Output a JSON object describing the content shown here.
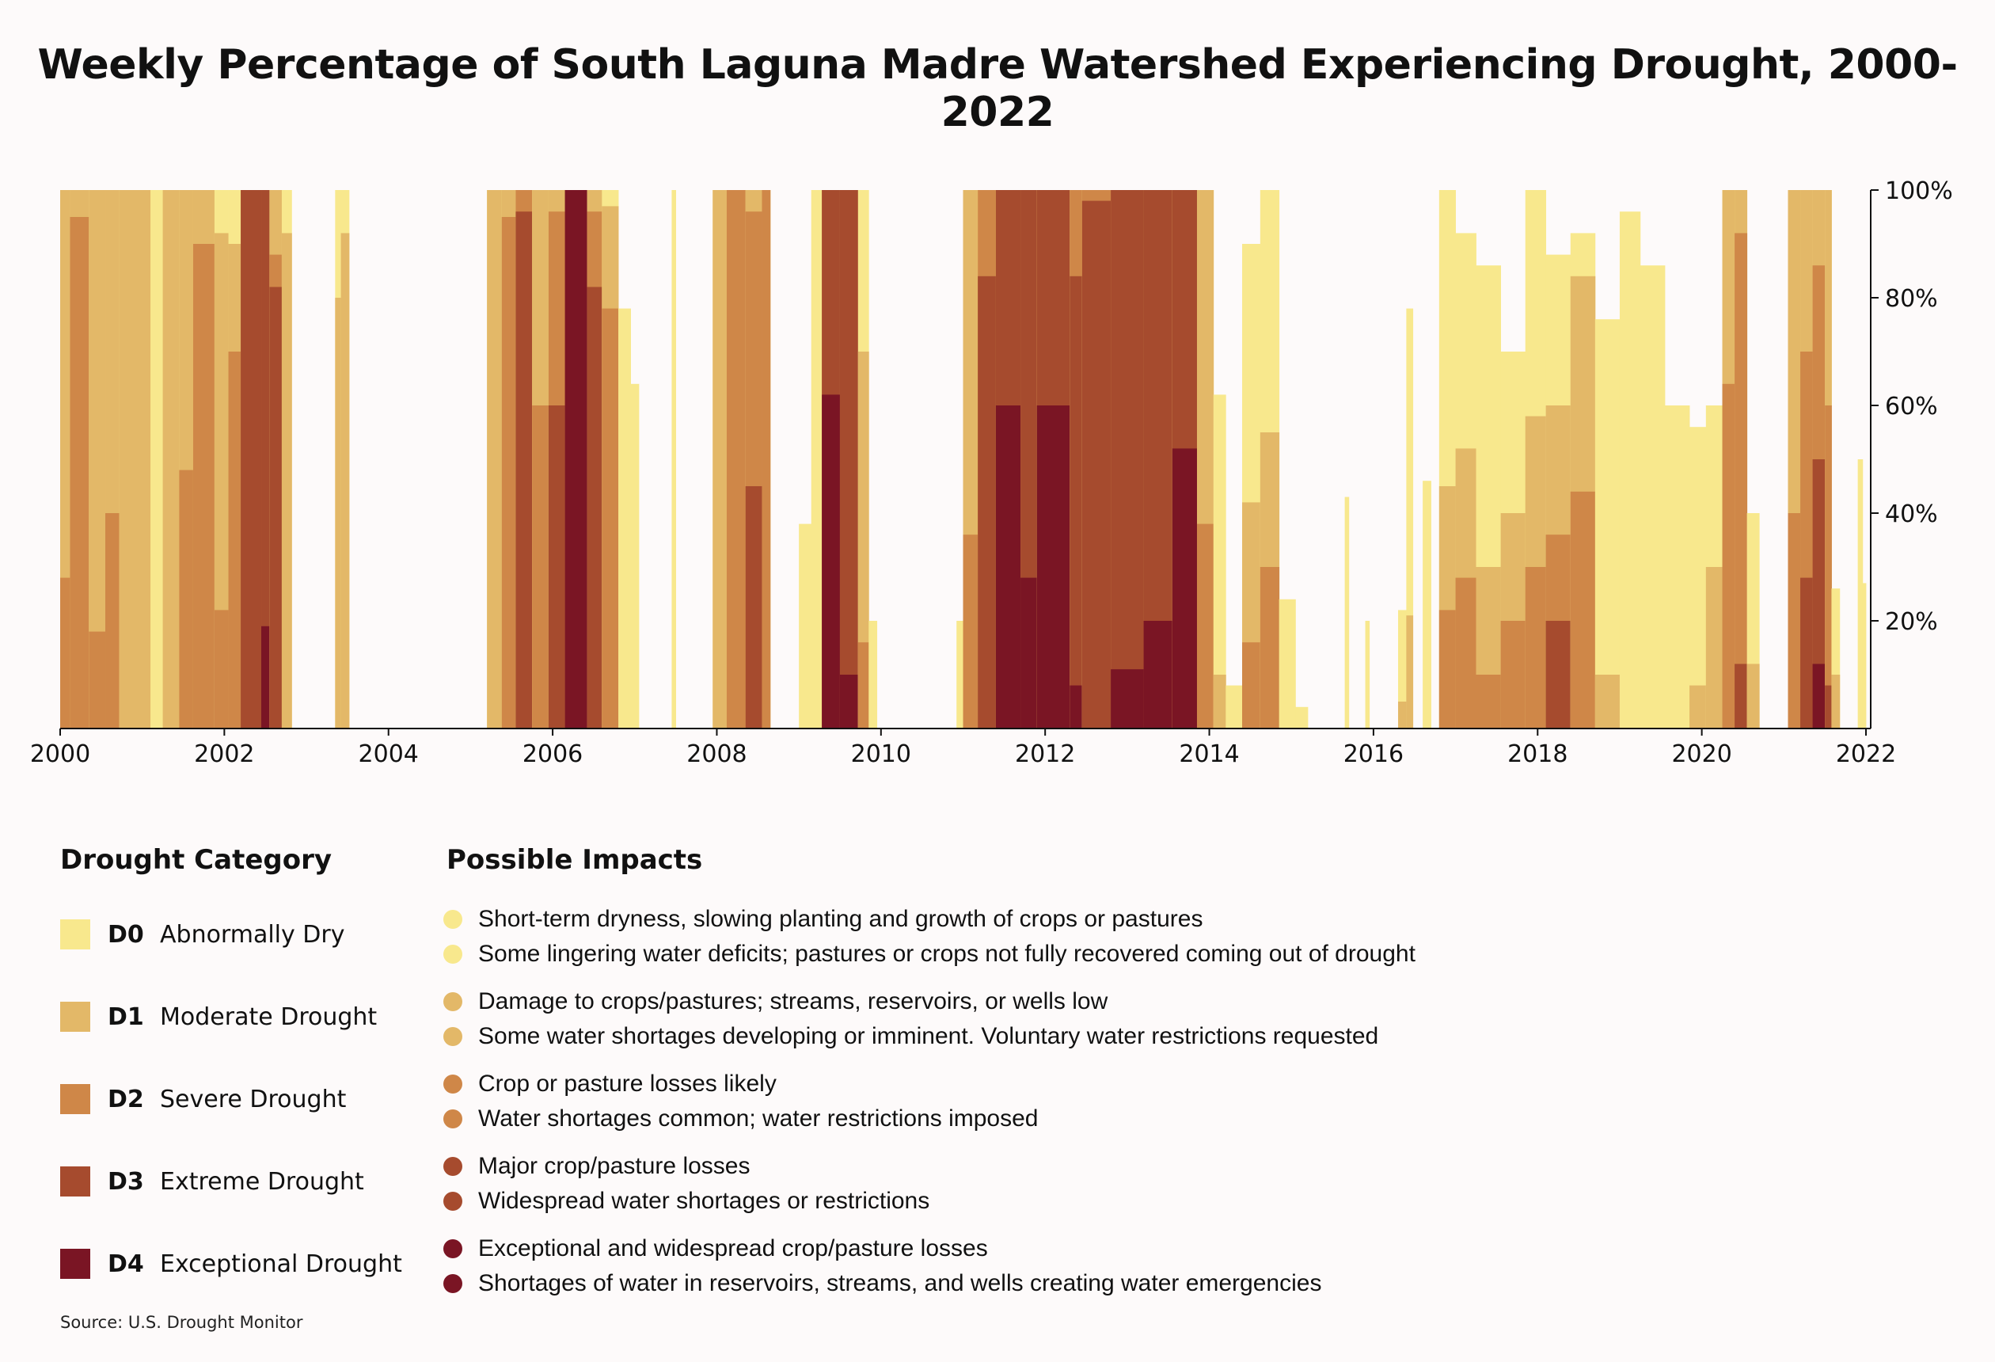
{
  "colors": {
    "background": "#fdfafa",
    "D0": "#f8e88d",
    "D1": "#e3b868",
    "D2": "#cf8748",
    "D3": "#a64b2e",
    "D4": "#7a1524",
    "axis": "#111111"
  },
  "chart_data": {
    "type": "area",
    "title": "Weekly Percentage of South Laguna Madre Watershed Experiencing Drought, 2000-2022",
    "xlim": [
      2000,
      2022
    ],
    "ylim": [
      0,
      100
    ],
    "y_axis_side": "right",
    "x_ticks": [
      {
        "value": 2000,
        "label": "2000"
      },
      {
        "value": 2002,
        "label": "2002"
      },
      {
        "value": 2004,
        "label": "2004"
      },
      {
        "value": 2006,
        "label": "2006"
      },
      {
        "value": 2008,
        "label": "2008"
      },
      {
        "value": 2010,
        "label": "2010"
      },
      {
        "value": 2012,
        "label": "2012"
      },
      {
        "value": 2014,
        "label": "2014"
      },
      {
        "value": 2016,
        "label": "2016"
      },
      {
        "value": 2018,
        "label": "2018"
      },
      {
        "value": 2020,
        "label": "2020"
      },
      {
        "value": 2022,
        "label": "2022"
      }
    ],
    "y_ticks": [
      {
        "value": 20,
        "label": "20%"
      },
      {
        "value": 40,
        "label": "40%"
      },
      {
        "value": 60,
        "label": "60%"
      },
      {
        "value": 80,
        "label": "80%"
      },
      {
        "value": 100,
        "label": "100%"
      }
    ],
    "series_order": [
      "D0",
      "D1",
      "D2",
      "D3",
      "D4"
    ],
    "segments": [
      {
        "start": 2000.0,
        "end": 2000.12,
        "D0": 100,
        "D1": 100,
        "D2": 28,
        "D3": 0,
        "D4": 0
      },
      {
        "start": 2000.12,
        "end": 2000.35,
        "D0": 100,
        "D1": 100,
        "D2": 95,
        "D3": 0,
        "D4": 0
      },
      {
        "start": 2000.35,
        "end": 2000.55,
        "D0": 100,
        "D1": 100,
        "D2": 18,
        "D3": 0,
        "D4": 0
      },
      {
        "start": 2000.55,
        "end": 2000.72,
        "D0": 100,
        "D1": 100,
        "D2": 40,
        "D3": 0,
        "D4": 0
      },
      {
        "start": 2000.72,
        "end": 2001.1,
        "D0": 100,
        "D1": 100,
        "D2": 0,
        "D3": 0,
        "D4": 0
      },
      {
        "start": 2001.1,
        "end": 2001.25,
        "D0": 100,
        "D1": 0,
        "D2": 0,
        "D3": 0,
        "D4": 0
      },
      {
        "start": 2001.25,
        "end": 2001.45,
        "D0": 100,
        "D1": 100,
        "D2": 0,
        "D3": 0,
        "D4": 0
      },
      {
        "start": 2001.45,
        "end": 2001.62,
        "D0": 100,
        "D1": 100,
        "D2": 48,
        "D3": 0,
        "D4": 0
      },
      {
        "start": 2001.62,
        "end": 2001.88,
        "D0": 100,
        "D1": 100,
        "D2": 90,
        "D3": 0,
        "D4": 0
      },
      {
        "start": 2001.88,
        "end": 2002.05,
        "D0": 100,
        "D1": 92,
        "D2": 22,
        "D3": 0,
        "D4": 0
      },
      {
        "start": 2002.05,
        "end": 2002.2,
        "D0": 100,
        "D1": 90,
        "D2": 70,
        "D3": 0,
        "D4": 0
      },
      {
        "start": 2002.2,
        "end": 2002.45,
        "D0": 100,
        "D1": 100,
        "D2": 100,
        "D3": 100,
        "D4": 0
      },
      {
        "start": 2002.45,
        "end": 2002.55,
        "D0": 100,
        "D1": 100,
        "D2": 100,
        "D3": 100,
        "D4": 19
      },
      {
        "start": 2002.55,
        "end": 2002.7,
        "D0": 100,
        "D1": 100,
        "D2": 88,
        "D3": 82,
        "D4": 0
      },
      {
        "start": 2002.7,
        "end": 2002.82,
        "D0": 100,
        "D1": 92,
        "D2": 0,
        "D3": 0,
        "D4": 0
      },
      {
        "start": 2003.35,
        "end": 2003.42,
        "D0": 100,
        "D1": 80,
        "D2": 0,
        "D3": 0,
        "D4": 0
      },
      {
        "start": 2003.42,
        "end": 2003.52,
        "D0": 100,
        "D1": 92,
        "D2": 0,
        "D3": 0,
        "D4": 0
      },
      {
        "start": 2005.2,
        "end": 2005.38,
        "D0": 100,
        "D1": 100,
        "D2": 0,
        "D3": 0,
        "D4": 0
      },
      {
        "start": 2005.38,
        "end": 2005.55,
        "D0": 100,
        "D1": 100,
        "D2": 95,
        "D3": 0,
        "D4": 0
      },
      {
        "start": 2005.55,
        "end": 2005.75,
        "D0": 100,
        "D1": 100,
        "D2": 100,
        "D3": 96,
        "D4": 0
      },
      {
        "start": 2005.75,
        "end": 2005.95,
        "D0": 100,
        "D1": 100,
        "D2": 60,
        "D3": 0,
        "D4": 0
      },
      {
        "start": 2005.95,
        "end": 2006.15,
        "D0": 100,
        "D1": 100,
        "D2": 96,
        "D3": 60,
        "D4": 0
      },
      {
        "start": 2006.15,
        "end": 2006.42,
        "D0": 100,
        "D1": 100,
        "D2": 100,
        "D3": 100,
        "D4": 100
      },
      {
        "start": 2006.42,
        "end": 2006.6,
        "D0": 100,
        "D1": 100,
        "D2": 96,
        "D3": 82,
        "D4": 0
      },
      {
        "start": 2006.6,
        "end": 2006.8,
        "D0": 100,
        "D1": 97,
        "D2": 78,
        "D3": 0,
        "D4": 0
      },
      {
        "start": 2006.8,
        "end": 2006.95,
        "D0": 78,
        "D1": 0,
        "D2": 0,
        "D3": 0,
        "D4": 0
      },
      {
        "start": 2006.95,
        "end": 2007.05,
        "D0": 64,
        "D1": 0,
        "D2": 0,
        "D3": 0,
        "D4": 0
      },
      {
        "start": 2007.45,
        "end": 2007.5,
        "D0": 100,
        "D1": 0,
        "D2": 0,
        "D3": 0,
        "D4": 0
      },
      {
        "start": 2007.95,
        "end": 2008.12,
        "D0": 100,
        "D1": 100,
        "D2": 0,
        "D3": 0,
        "D4": 0
      },
      {
        "start": 2008.12,
        "end": 2008.35,
        "D0": 100,
        "D1": 100,
        "D2": 100,
        "D3": 0,
        "D4": 0
      },
      {
        "start": 2008.35,
        "end": 2008.55,
        "D0": 100,
        "D1": 100,
        "D2": 96,
        "D3": 45,
        "D4": 0
      },
      {
        "start": 2008.55,
        "end": 2008.65,
        "D0": 100,
        "D1": 100,
        "D2": 100,
        "D3": 0,
        "D4": 0
      },
      {
        "start": 2009.0,
        "end": 2009.15,
        "D0": 38,
        "D1": 0,
        "D2": 0,
        "D3": 0,
        "D4": 0
      },
      {
        "start": 2009.15,
        "end": 2009.28,
        "D0": 100,
        "D1": 0,
        "D2": 0,
        "D3": 0,
        "D4": 0
      },
      {
        "start": 2009.28,
        "end": 2009.5,
        "D0": 100,
        "D1": 100,
        "D2": 100,
        "D3": 100,
        "D4": 62
      },
      {
        "start": 2009.5,
        "end": 2009.72,
        "D0": 100,
        "D1": 100,
        "D2": 100,
        "D3": 100,
        "D4": 10
      },
      {
        "start": 2009.72,
        "end": 2009.85,
        "D0": 100,
        "D1": 70,
        "D2": 16,
        "D3": 0,
        "D4": 0
      },
      {
        "start": 2009.85,
        "end": 2009.95,
        "D0": 20,
        "D1": 0,
        "D2": 0,
        "D3": 0,
        "D4": 0
      },
      {
        "start": 2010.92,
        "end": 2011.0,
        "D0": 20,
        "D1": 0,
        "D2": 0,
        "D3": 0,
        "D4": 0
      },
      {
        "start": 2011.0,
        "end": 2011.18,
        "D0": 100,
        "D1": 100,
        "D2": 36,
        "D3": 0,
        "D4": 0
      },
      {
        "start": 2011.18,
        "end": 2011.4,
        "D0": 100,
        "D1": 100,
        "D2": 100,
        "D3": 84,
        "D4": 0
      },
      {
        "start": 2011.4,
        "end": 2011.7,
        "D0": 100,
        "D1": 100,
        "D2": 100,
        "D3": 100,
        "D4": 60
      },
      {
        "start": 2011.7,
        "end": 2011.9,
        "D0": 100,
        "D1": 100,
        "D2": 100,
        "D3": 100,
        "D4": 28
      },
      {
        "start": 2011.9,
        "end": 2012.3,
        "D0": 100,
        "D1": 100,
        "D2": 100,
        "D3": 100,
        "D4": 60
      },
      {
        "start": 2012.3,
        "end": 2012.45,
        "D0": 100,
        "D1": 100,
        "D2": 100,
        "D3": 84,
        "D4": 8
      },
      {
        "start": 2012.45,
        "end": 2012.8,
        "D0": 100,
        "D1": 100,
        "D2": 100,
        "D3": 98,
        "D4": 0
      },
      {
        "start": 2012.8,
        "end": 2013.2,
        "D0": 100,
        "D1": 100,
        "D2": 100,
        "D3": 100,
        "D4": 11
      },
      {
        "start": 2013.2,
        "end": 2013.55,
        "D0": 100,
        "D1": 100,
        "D2": 100,
        "D3": 100,
        "D4": 20
      },
      {
        "start": 2013.55,
        "end": 2013.85,
        "D0": 100,
        "D1": 100,
        "D2": 100,
        "D3": 100,
        "D4": 52
      },
      {
        "start": 2013.85,
        "end": 2014.05,
        "D0": 100,
        "D1": 100,
        "D2": 38,
        "D3": 0,
        "D4": 0
      },
      {
        "start": 2014.05,
        "end": 2014.2,
        "D0": 62,
        "D1": 10,
        "D2": 0,
        "D3": 0,
        "D4": 0
      },
      {
        "start": 2014.2,
        "end": 2014.4,
        "D0": 8,
        "D1": 0,
        "D2": 0,
        "D3": 0,
        "D4": 0
      },
      {
        "start": 2014.4,
        "end": 2014.62,
        "D0": 90,
        "D1": 42,
        "D2": 16,
        "D3": 0,
        "D4": 0
      },
      {
        "start": 2014.62,
        "end": 2014.85,
        "D0": 100,
        "D1": 55,
        "D2": 30,
        "D3": 0,
        "D4": 0
      },
      {
        "start": 2014.85,
        "end": 2015.05,
        "D0": 24,
        "D1": 0,
        "D2": 0,
        "D3": 0,
        "D4": 0
      },
      {
        "start": 2015.05,
        "end": 2015.2,
        "D0": 4,
        "D1": 0,
        "D2": 0,
        "D3": 0,
        "D4": 0
      },
      {
        "start": 2015.65,
        "end": 2015.7,
        "D0": 43,
        "D1": 0,
        "D2": 0,
        "D3": 0,
        "D4": 0
      },
      {
        "start": 2015.9,
        "end": 2015.95,
        "D0": 20,
        "D1": 0,
        "D2": 0,
        "D3": 0,
        "D4": 0
      },
      {
        "start": 2016.3,
        "end": 2016.4,
        "D0": 22,
        "D1": 5,
        "D2": 0,
        "D3": 0,
        "D4": 0
      },
      {
        "start": 2016.4,
        "end": 2016.48,
        "D0": 78,
        "D1": 21,
        "D2": 0,
        "D3": 0,
        "D4": 0
      },
      {
        "start": 2016.6,
        "end": 2016.7,
        "D0": 46,
        "D1": 0,
        "D2": 0,
        "D3": 0,
        "D4": 0
      },
      {
        "start": 2016.8,
        "end": 2017.0,
        "D0": 100,
        "D1": 45,
        "D2": 22,
        "D3": 0,
        "D4": 0
      },
      {
        "start": 2017.0,
        "end": 2017.25,
        "D0": 92,
        "D1": 52,
        "D2": 28,
        "D3": 0,
        "D4": 0
      },
      {
        "start": 2017.25,
        "end": 2017.55,
        "D0": 86,
        "D1": 30,
        "D2": 10,
        "D3": 0,
        "D4": 0
      },
      {
        "start": 2017.55,
        "end": 2017.85,
        "D0": 70,
        "D1": 40,
        "D2": 20,
        "D3": 0,
        "D4": 0
      },
      {
        "start": 2017.85,
        "end": 2018.1,
        "D0": 100,
        "D1": 58,
        "D2": 30,
        "D3": 0,
        "D4": 0
      },
      {
        "start": 2018.1,
        "end": 2018.4,
        "D0": 88,
        "D1": 60,
        "D2": 36,
        "D3": 20,
        "D4": 0
      },
      {
        "start": 2018.4,
        "end": 2018.7,
        "D0": 92,
        "D1": 84,
        "D2": 44,
        "D3": 0,
        "D4": 0
      },
      {
        "start": 2018.7,
        "end": 2019.0,
        "D0": 76,
        "D1": 10,
        "D2": 0,
        "D3": 0,
        "D4": 0
      },
      {
        "start": 2019.0,
        "end": 2019.25,
        "D0": 96,
        "D1": 0,
        "D2": 0,
        "D3": 0,
        "D4": 0
      },
      {
        "start": 2019.25,
        "end": 2019.55,
        "D0": 86,
        "D1": 0,
        "D2": 0,
        "D3": 0,
        "D4": 0
      },
      {
        "start": 2019.55,
        "end": 2019.85,
        "D0": 60,
        "D1": 0,
        "D2": 0,
        "D3": 0,
        "D4": 0
      },
      {
        "start": 2019.85,
        "end": 2020.05,
        "D0": 56,
        "D1": 8,
        "D2": 0,
        "D3": 0,
        "D4": 0
      },
      {
        "start": 2020.05,
        "end": 2020.25,
        "D0": 60,
        "D1": 30,
        "D2": 0,
        "D3": 0,
        "D4": 0
      },
      {
        "start": 2020.25,
        "end": 2020.4,
        "D0": 100,
        "D1": 100,
        "D2": 64,
        "D3": 0,
        "D4": 0
      },
      {
        "start": 2020.4,
        "end": 2020.55,
        "D0": 100,
        "D1": 100,
        "D2": 92,
        "D3": 12,
        "D4": 0
      },
      {
        "start": 2020.55,
        "end": 2020.7,
        "D0": 40,
        "D1": 12,
        "D2": 0,
        "D3": 0,
        "D4": 0
      },
      {
        "start": 2021.05,
        "end": 2021.2,
        "D0": 100,
        "D1": 100,
        "D2": 40,
        "D3": 0,
        "D4": 0
      },
      {
        "start": 2021.2,
        "end": 2021.35,
        "D0": 100,
        "D1": 100,
        "D2": 70,
        "D3": 28,
        "D4": 0
      },
      {
        "start": 2021.35,
        "end": 2021.5,
        "D0": 100,
        "D1": 100,
        "D2": 86,
        "D3": 50,
        "D4": 12
      },
      {
        "start": 2021.5,
        "end": 2021.58,
        "D0": 100,
        "D1": 100,
        "D2": 60,
        "D3": 8,
        "D4": 0
      },
      {
        "start": 2021.58,
        "end": 2021.68,
        "D0": 26,
        "D1": 10,
        "D2": 0,
        "D3": 0,
        "D4": 0
      },
      {
        "start": 2021.9,
        "end": 2021.96,
        "D0": 50,
        "D1": 0,
        "D2": 0,
        "D3": 0,
        "D4": 0
      },
      {
        "start": 2021.96,
        "end": 2022.0,
        "D0": 27,
        "D1": 0,
        "D2": 0,
        "D3": 0,
        "D4": 0
      }
    ]
  },
  "legend": {
    "heading": "Drought Category",
    "categories": [
      {
        "code": "D0",
        "name": "Abnormally Dry",
        "color_key": "D0"
      },
      {
        "code": "D1",
        "name": "Moderate Drought",
        "color_key": "D1"
      },
      {
        "code": "D2",
        "name": "Severe Drought",
        "color_key": "D2"
      },
      {
        "code": "D3",
        "name": "Extreme Drought",
        "color_key": "D3"
      },
      {
        "code": "D4",
        "name": "Exceptional Drought",
        "color_key": "D4"
      }
    ]
  },
  "impacts": {
    "heading": "Possible Impacts",
    "groups": [
      {
        "color_key": "D0",
        "items": [
          "Short-term dryness, slowing planting and growth of crops or pastures",
          "Some lingering water deficits; pastures or crops not fully recovered coming out of drought"
        ]
      },
      {
        "color_key": "D1",
        "items": [
          "Damage to crops/pastures; streams, reservoirs, or wells low",
          "Some water shortages developing or imminent. Voluntary water restrictions requested"
        ]
      },
      {
        "color_key": "D2",
        "items": [
          "Crop or pasture losses likely",
          "Water shortages common; water restrictions imposed"
        ]
      },
      {
        "color_key": "D3",
        "items": [
          "Major crop/pasture losses",
          "Widespread water shortages or restrictions"
        ]
      },
      {
        "color_key": "D4",
        "items": [
          "Exceptional and widespread crop/pasture losses",
          "Shortages of water in reservoirs, streams, and wells creating water emergencies"
        ]
      }
    ]
  },
  "source": "Source: U.S. Drought Monitor"
}
